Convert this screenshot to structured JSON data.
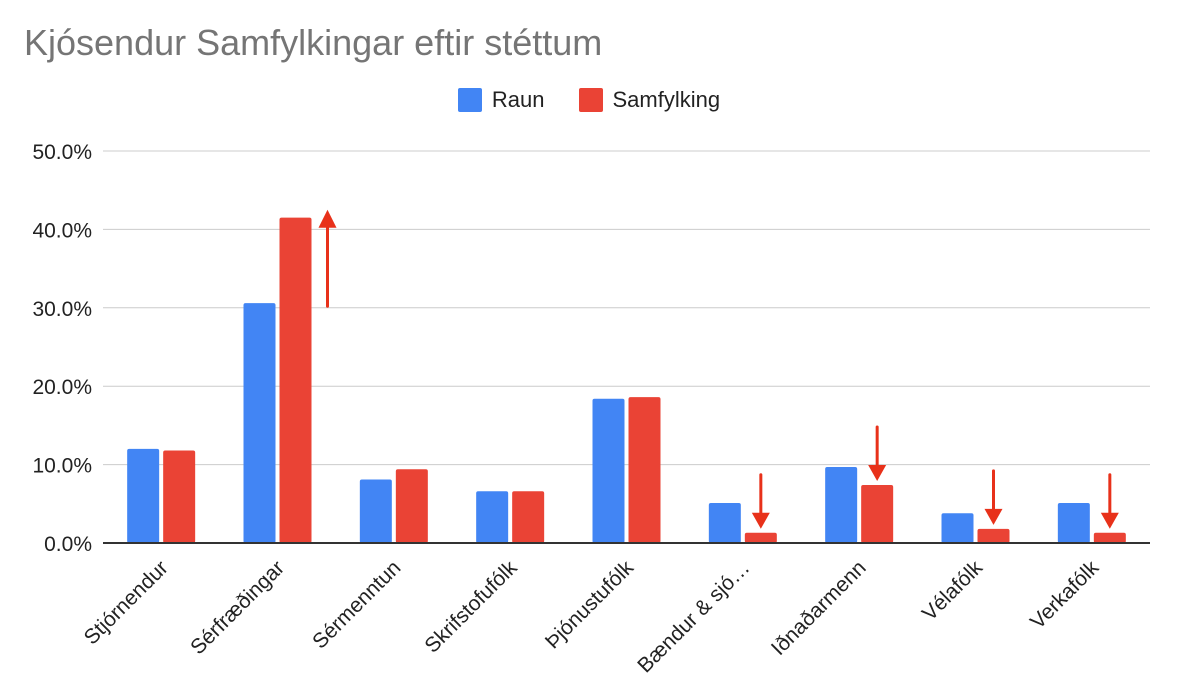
{
  "chart_data": {
    "type": "bar",
    "title": "Kjósendur Samfylkingar eftir stéttum",
    "xlabel": "",
    "ylabel": "",
    "categories": [
      "Stjórnendur",
      "Sérfræðingar",
      "Sérmenntun",
      "Skrifstofufólk",
      "Þjónustufólk",
      "Bændur & sjó…",
      "Iðnaðarmenn",
      "Vélafólk",
      "Verkafólk"
    ],
    "series": [
      {
        "name": "Raun",
        "color": "#4285F4",
        "values": [
          12.0,
          30.6,
          8.1,
          6.6,
          18.4,
          5.1,
          9.7,
          3.8,
          5.1
        ]
      },
      {
        "name": "Samfylking",
        "color": "#EA4335",
        "values": [
          11.8,
          41.5,
          9.4,
          6.6,
          18.6,
          1.3,
          7.4,
          1.8,
          1.3
        ]
      }
    ],
    "ylim": [
      0,
      50
    ],
    "yticks": [
      "0.0%",
      "10.0%",
      "20.0%",
      "30.0%",
      "40.0%",
      "50.0%"
    ],
    "grid": true,
    "legend_position": "top-center",
    "annotations": [
      {
        "category": "Sérfræðingar",
        "direction": "up",
        "color": "#E8311A"
      },
      {
        "category": "Bændur & sjó…",
        "direction": "down",
        "color": "#E8311A"
      },
      {
        "category": "Iðnaðarmenn",
        "direction": "down",
        "color": "#E8311A"
      },
      {
        "category": "Vélafólk",
        "direction": "down",
        "color": "#E8311A"
      },
      {
        "category": "Verkafólk",
        "direction": "down",
        "color": "#E8311A"
      }
    ]
  }
}
